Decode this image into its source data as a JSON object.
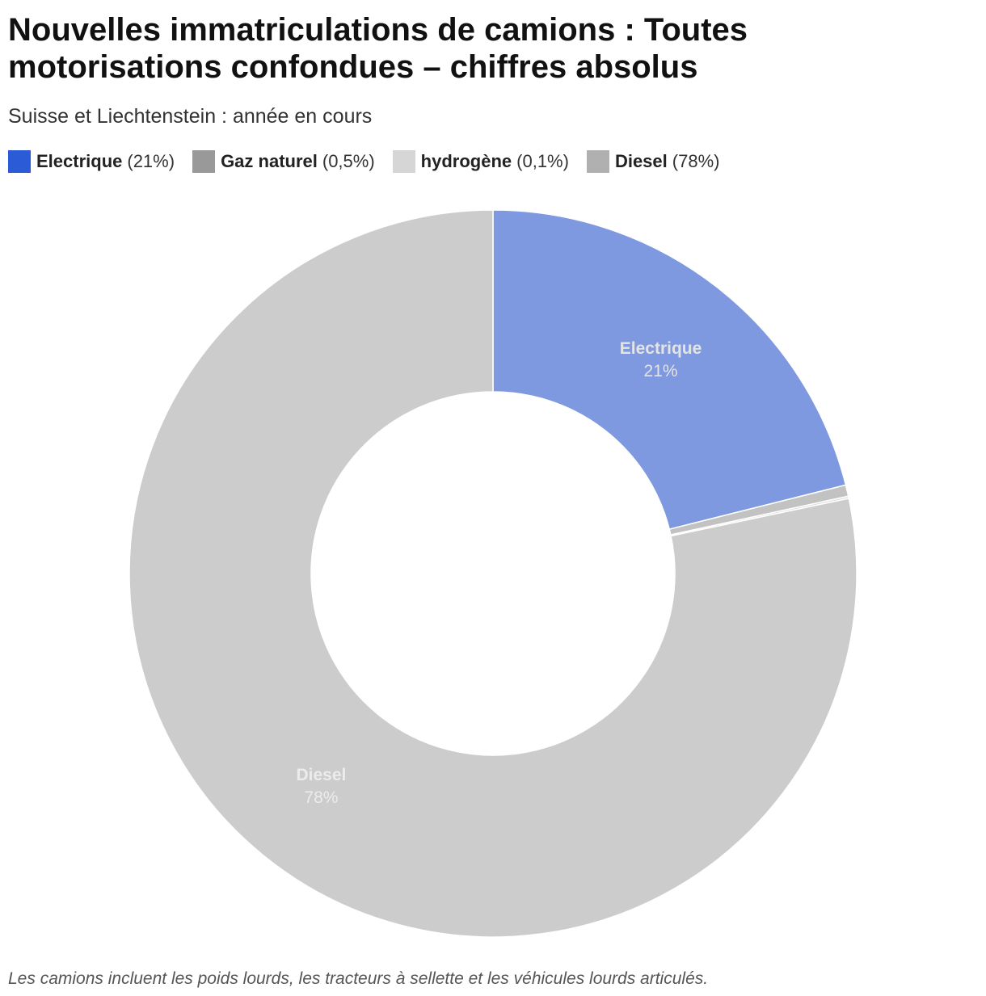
{
  "title": "Nouvelles immatriculations de camions : Toutes motorisations confondues – chiffres absolus",
  "subtitle": "Suisse et Liechtenstein : année en cours",
  "legend": [
    {
      "name": "Electrique",
      "pct": "(21%)",
      "color": "#2b5bd7"
    },
    {
      "name": "Gaz naturel",
      "pct": "(0,5%)",
      "color": "#999999"
    },
    {
      "name": "hydrogène",
      "pct": "(0,1%)",
      "color": "#d6d6d6"
    },
    {
      "name": "Diesel",
      "pct": "(78%)",
      "color": "#b0b0b0"
    }
  ],
  "chart_data": {
    "type": "pie",
    "variant": "donut",
    "slices": [
      {
        "name": "Electrique",
        "value": 21,
        "label": "21%",
        "color": "#7f99e0",
        "label_color": "#e4e4e4",
        "show_label": true
      },
      {
        "name": "Gaz naturel",
        "value": 0.5,
        "label": "0,5%",
        "color": "#c2c2c2",
        "show_label": false
      },
      {
        "name": "hydrogène",
        "value": 0.1,
        "label": "0,1%",
        "color": "#dddddd",
        "show_label": false
      },
      {
        "name": "Diesel",
        "value": 78,
        "label": "78%",
        "color": "#cccccc",
        "label_color": "#ececec",
        "show_label": true
      }
    ]
  },
  "footnote": "Les camions incluent les poids lourds, les tracteurs à sellette et les véhicules lourds articulés."
}
